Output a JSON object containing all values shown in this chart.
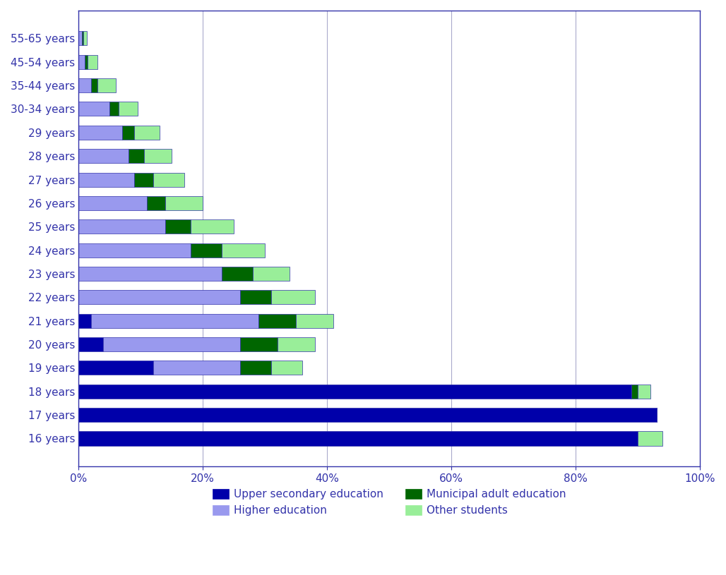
{
  "categories": [
    "16 years",
    "17 years",
    "18 years",
    "19 years",
    "20 years",
    "21 years",
    "22 years",
    "23 years",
    "24 years",
    "25 years",
    "26 years",
    "27 years",
    "28 years",
    "29 years",
    "30-34 years",
    "35-44 years",
    "45-54 years",
    "55-65 years"
  ],
  "upper_secondary": [
    90.0,
    93.0,
    89.0,
    12.0,
    4.0,
    2.0,
    0.0,
    0.0,
    0.0,
    0.0,
    0.0,
    0.0,
    0.0,
    0.0,
    0.0,
    0.0,
    0.0,
    0.0
  ],
  "higher_education": [
    0.0,
    0.0,
    0.0,
    14.0,
    22.0,
    27.0,
    26.0,
    23.0,
    18.0,
    14.0,
    11.0,
    9.0,
    8.0,
    7.0,
    5.0,
    2.0,
    1.0,
    0.5
  ],
  "municipal_adult": [
    0.0,
    0.0,
    1.0,
    5.0,
    6.0,
    6.0,
    5.0,
    5.0,
    5.0,
    4.0,
    3.0,
    3.0,
    2.5,
    2.0,
    1.5,
    1.0,
    0.5,
    0.3
  ],
  "other_students": [
    4.0,
    0.0,
    2.0,
    5.0,
    6.0,
    6.0,
    7.0,
    6.0,
    7.0,
    7.0,
    6.0,
    5.0,
    4.5,
    4.0,
    3.0,
    3.0,
    1.5,
    0.5
  ],
  "color_upper": "#0000AA",
  "color_higher": "#9999EE",
  "color_municipal": "#006600",
  "color_other": "#99EE99",
  "xlabel": "",
  "xlim": [
    0,
    100
  ],
  "xticks": [
    0,
    20,
    40,
    60,
    80,
    100
  ],
  "xticklabels": [
    "0%",
    "20%",
    "40%",
    "60%",
    "80%",
    "100%"
  ],
  "legend_labels": [
    "Upper secondary education",
    "Higher education",
    "Municipal adult education",
    "Other students"
  ],
  "background_color": "#ffffff",
  "grid_color": "#aaaacc"
}
